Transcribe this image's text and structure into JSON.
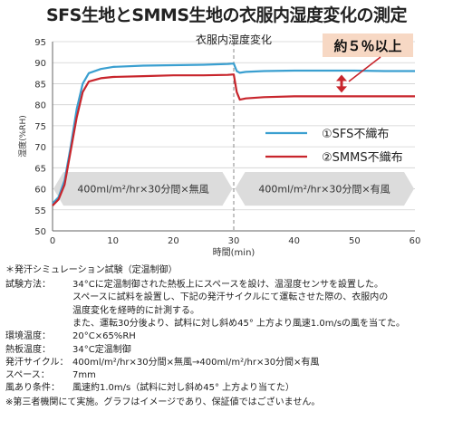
{
  "title": "SFS生地とSMMS生地の衣服内湿度変化の測定",
  "chart_data": {
    "type": "line",
    "title": "衣服内湿度変化",
    "xlabel": "時間(min)",
    "ylabel": "湿度(%RH)",
    "xlim": [
      0,
      60
    ],
    "ylim": [
      50,
      95
    ],
    "xticks": [
      "0",
      "10",
      "20",
      "30",
      "40",
      "50",
      "60"
    ],
    "yticks": [
      "50",
      "55",
      "60",
      "65",
      "70",
      "75",
      "80",
      "85",
      "90",
      "95"
    ],
    "series": [
      {
        "name": "①SFS不織布",
        "color": "#3a9fd0",
        "x": [
          0,
          1,
          2,
          3,
          4,
          5,
          6,
          8,
          10,
          15,
          20,
          25,
          29,
          30,
          30.5,
          31,
          32,
          35,
          40,
          45,
          50,
          55,
          60
        ],
        "y": [
          56.5,
          58,
          62,
          70,
          79,
          85,
          87.5,
          88.5,
          89,
          89.3,
          89.4,
          89.5,
          89.7,
          89.8,
          88,
          87.6,
          87.8,
          88,
          88.1,
          88.1,
          88.1,
          88,
          88
        ]
      },
      {
        "name": "②SMMS不織布",
        "color": "#c8252c",
        "x": [
          0,
          1,
          2,
          3,
          4,
          5,
          6,
          8,
          10,
          15,
          20,
          25,
          29,
          30,
          30.5,
          31,
          32,
          35,
          40,
          45,
          50,
          55,
          60
        ],
        "y": [
          56,
          57.5,
          61,
          69,
          77,
          83,
          85.5,
          86.3,
          86.6,
          86.8,
          87,
          87,
          87.1,
          87.2,
          83,
          81.2,
          81.5,
          81.8,
          82,
          82,
          82,
          82,
          82
        ]
      }
    ],
    "annotation": "約５％以上",
    "phases": [
      {
        "label": "400ml/m²/hr×30分間×無風",
        "from": 0,
        "to": 30
      },
      {
        "label": "400ml/m²/hr×30分間×有風",
        "from": 30,
        "to": 60
      }
    ]
  },
  "notes": {
    "heading": "＊発汗シミュレーション試験（定温制御）",
    "rows": [
      {
        "label": "試験方法：",
        "text": "34°Cに定温制御された熱板上にスペースを設け、温湿度センサを設置した。"
      },
      {
        "label": "",
        "text": "スペースに試料を設置し、下記の発汗サイクルにて運転させた際の、衣服内の"
      },
      {
        "label": "",
        "text": "温度変化を経時的に計測する。"
      },
      {
        "label": "",
        "text": "また、運転30分後より、試料に対し斜め45° 上方より風速1.0m/sの風を当てた。"
      },
      {
        "label": "環境温度：",
        "text": "20°C×65%RH"
      },
      {
        "label": "熱板温度：",
        "text": "34°C定温制御"
      },
      {
        "label": "発汗サイクル：",
        "text": "400ml/m²/hr×30分間×無風→400ml/m²/hr×30分間×有風"
      },
      {
        "label": "スペース：",
        "text": "7mm"
      },
      {
        "label": "風あり条件：",
        "text": "風速約1.0m/s（試料に対し斜め45° 上方より当てた）"
      }
    ],
    "footer": "※第三者機関にて実施。グラフはイメージであり、保証値ではございません。"
  }
}
